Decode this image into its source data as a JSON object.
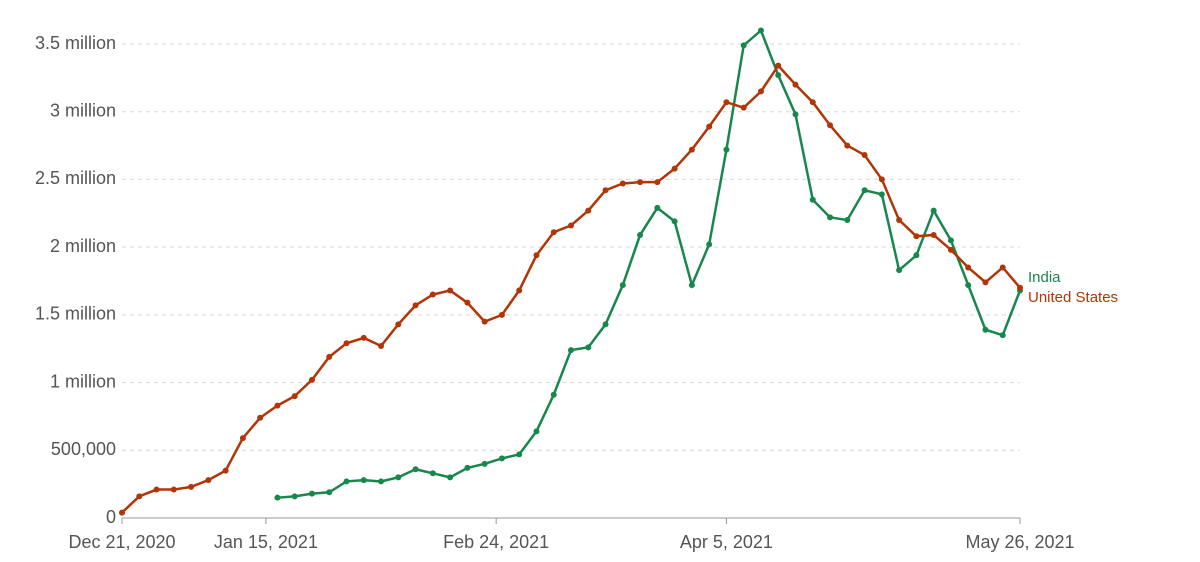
{
  "chart_data": {
    "type": "line",
    "x": [
      "2020-12-21",
      "2020-12-24",
      "2020-12-27",
      "2020-12-30",
      "2021-01-02",
      "2021-01-05",
      "2021-01-08",
      "2021-01-11",
      "2021-01-14",
      "2021-01-17",
      "2021-01-20",
      "2021-01-23",
      "2021-01-26",
      "2021-01-29",
      "2021-02-01",
      "2021-02-04",
      "2021-02-07",
      "2021-02-10",
      "2021-02-13",
      "2021-02-16",
      "2021-02-19",
      "2021-02-22",
      "2021-02-25",
      "2021-02-28",
      "2021-03-03",
      "2021-03-06",
      "2021-03-09",
      "2021-03-12",
      "2021-03-15",
      "2021-03-18",
      "2021-03-21",
      "2021-03-24",
      "2021-03-27",
      "2021-03-30",
      "2021-04-02",
      "2021-04-05",
      "2021-04-08",
      "2021-04-11",
      "2021-04-14",
      "2021-04-17",
      "2021-04-20",
      "2021-04-23",
      "2021-04-26",
      "2021-04-29",
      "2021-05-02",
      "2021-05-05",
      "2021-05-08",
      "2021-05-11",
      "2021-05-14",
      "2021-05-17",
      "2021-05-20",
      "2021-05-23",
      "2021-05-26"
    ],
    "series": [
      {
        "name": "India",
        "color": "#18874b",
        "values": [
          null,
          null,
          null,
          null,
          null,
          null,
          null,
          null,
          null,
          150000,
          160000,
          180000,
          190000,
          270000,
          280000,
          270000,
          300000,
          360000,
          330000,
          300000,
          370000,
          400000,
          440000,
          470000,
          640000,
          910000,
          1240000,
          1260000,
          1430000,
          1720000,
          2090000,
          2290000,
          2190000,
          1720000,
          2020000,
          2720000,
          3490000,
          3600000,
          3270000,
          2980000,
          2350000,
          2220000,
          2200000,
          2420000,
          2390000,
          1830000,
          1940000,
          2270000,
          2050000,
          1720000,
          1390000,
          1350000,
          1680000
        ]
      },
      {
        "name": "United States",
        "color": "#b13507",
        "values": [
          40000,
          160000,
          210000,
          210000,
          230000,
          280000,
          350000,
          590000,
          740000,
          830000,
          900000,
          1020000,
          1190000,
          1290000,
          1330000,
          1270000,
          1430000,
          1570000,
          1650000,
          1680000,
          1590000,
          1450000,
          1500000,
          1680000,
          1940000,
          2110000,
          2160000,
          2270000,
          2420000,
          2470000,
          2480000,
          2480000,
          2580000,
          2720000,
          2890000,
          3070000,
          3030000,
          3150000,
          3340000,
          3200000,
          3070000,
          2900000,
          2750000,
          2680000,
          2500000,
          2200000,
          2080000,
          2090000,
          1980000,
          1850000,
          1740000,
          1850000,
          1700000
        ]
      }
    ],
    "xlim": [
      "2020-12-21",
      "2021-05-26"
    ],
    "xticks": [
      {
        "value": "2020-12-21",
        "label": "Dec 21, 2020"
      },
      {
        "value": "2021-01-15",
        "label": "Jan 15, 2021"
      },
      {
        "value": "2021-02-24",
        "label": "Feb 24, 2021"
      },
      {
        "value": "2021-04-05",
        "label": "Apr 5, 2021"
      },
      {
        "value": "2021-05-26",
        "label": "May 26, 2021"
      }
    ],
    "ylim": [
      0,
      3500000
    ],
    "yticks": [
      0,
      {
        "value": 500000,
        "label": "500,000"
      },
      {
        "value": 1000000,
        "label": "1 million"
      },
      {
        "value": 1500000,
        "label": "1.5 million"
      },
      {
        "value": 2000000,
        "label": "2 million"
      },
      {
        "value": 2500000,
        "label": "2.5 million"
      },
      {
        "value": 3000000,
        "label": "3 million"
      },
      {
        "value": 3500000,
        "label": "3.5 million"
      }
    ],
    "grid": true
  }
}
